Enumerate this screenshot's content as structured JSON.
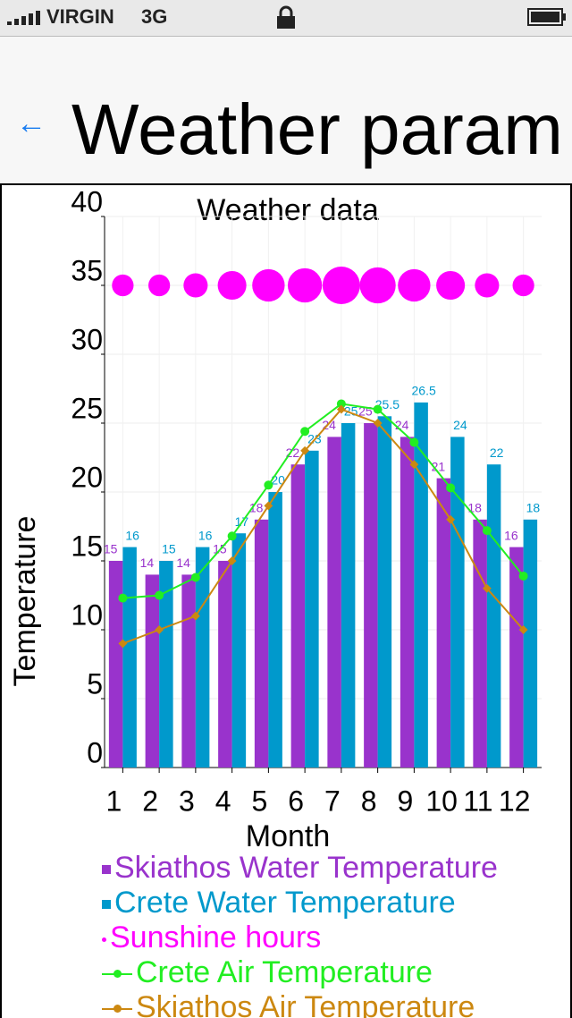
{
  "status_bar": {
    "carrier": "VIRGIN",
    "network": "3G"
  },
  "nav": {
    "title": "Weather param"
  },
  "chart_data": {
    "type": "combo",
    "title": "Weather data",
    "x_label": "Month",
    "y_label": "Temperature",
    "categories": [
      "1",
      "2",
      "3",
      "4",
      "5",
      "6",
      "7",
      "8",
      "9",
      "10",
      "11",
      "12"
    ],
    "ylim": [
      0,
      40
    ],
    "yticks": [
      0,
      5,
      10,
      15,
      20,
      25,
      30,
      35,
      40
    ],
    "grid": true,
    "series": [
      {
        "name": "Skiathos Water Temperature",
        "type": "bar",
        "color": "#9933cc",
        "values": [
          15,
          14,
          14,
          15,
          18,
          22,
          24,
          25,
          24,
          21,
          18,
          16
        ]
      },
      {
        "name": "Crete Water Temperature",
        "type": "bar",
        "color": "#0099cc",
        "values": [
          16,
          15,
          16,
          17,
          20,
          23,
          25,
          25.5,
          26.5,
          24,
          22,
          18
        ]
      },
      {
        "name": "Sunshine hours",
        "type": "bubble",
        "color": "#ff00ff",
        "values": [
          35,
          35,
          35,
          35,
          35,
          35,
          35,
          35,
          35,
          35,
          35,
          35
        ],
        "sizes": [
          4,
          4,
          5,
          7,
          9,
          10,
          12,
          11,
          9,
          7,
          5,
          4
        ]
      },
      {
        "name": "Crete Air Temperature",
        "type": "line",
        "color": "#22ee22",
        "values": [
          12.3,
          12.5,
          13.8,
          16.8,
          20.5,
          24.4,
          26.4,
          26,
          23.6,
          20.3,
          17.2,
          13.9
        ]
      },
      {
        "name": "Skiathos Air Temperature",
        "type": "line",
        "color": "#cc8811",
        "values": [
          9,
          10,
          11,
          15,
          19,
          23,
          26,
          25,
          22,
          18,
          13,
          10
        ]
      }
    ]
  }
}
